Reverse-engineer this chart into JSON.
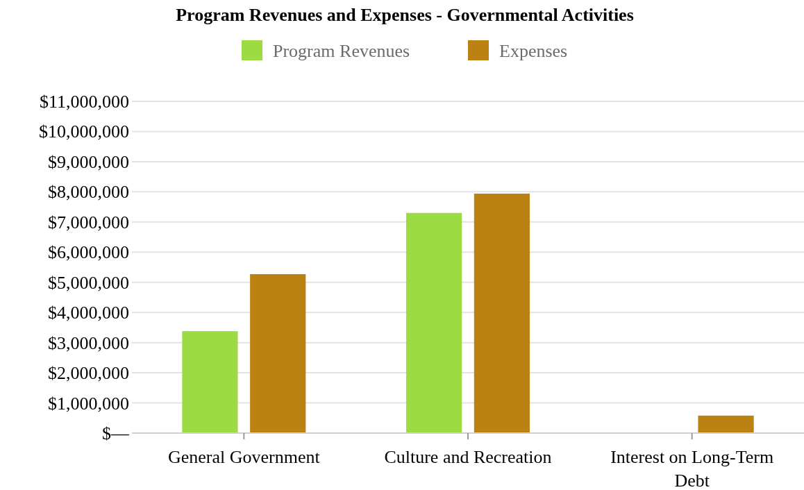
{
  "chart_data": {
    "type": "bar",
    "title": "Program Revenues and Expenses - Governmental Activities",
    "categories": [
      "General Government",
      "Culture and Recreation",
      "Interest on Long-Term Debt"
    ],
    "series": [
      {
        "name": "Program Revenues",
        "color": "#9ddb45",
        "values": [
          3380000,
          7300000,
          0
        ]
      },
      {
        "name": "Expenses",
        "color": "#bc8113",
        "values": [
          5270000,
          7940000,
          580000
        ]
      }
    ],
    "ylim": [
      0,
      11000000
    ],
    "yticks": [
      {
        "value": 0,
        "label": "$—"
      },
      {
        "value": 1000000,
        "label": "$1,000,000"
      },
      {
        "value": 2000000,
        "label": "$2,000,000"
      },
      {
        "value": 3000000,
        "label": "$3,000,000"
      },
      {
        "value": 4000000,
        "label": "$4,000,000"
      },
      {
        "value": 5000000,
        "label": "$5,000,000"
      },
      {
        "value": 6000000,
        "label": "$6,000,000"
      },
      {
        "value": 7000000,
        "label": "$7,000,000"
      },
      {
        "value": 8000000,
        "label": "$8,000,000"
      },
      {
        "value": 9000000,
        "label": "$9,000,000"
      },
      {
        "value": 10000000,
        "label": "$10,000,000"
      },
      {
        "value": 11000000,
        "label": "$11,000,000"
      }
    ],
    "grid": "y",
    "legend": "top"
  }
}
